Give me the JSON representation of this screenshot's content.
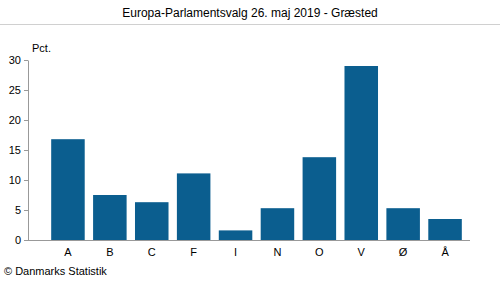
{
  "chart_data": {
    "type": "bar",
    "title": "Europa-Parlamentsvalg 26. maj 2019 - Græsted",
    "y_label": "Pct.",
    "source": "© Danmarks Statistik",
    "categories": [
      "A",
      "B",
      "C",
      "F",
      "I",
      "N",
      "O",
      "V",
      "Ø",
      "Å"
    ],
    "values": [
      16.8,
      7.5,
      6.3,
      11.1,
      1.6,
      5.3,
      13.8,
      29.0,
      5.3,
      3.5
    ],
    "color": "#0b5e8f",
    "ylim": [
      0,
      30
    ],
    "yticks": [
      0,
      5,
      10,
      15,
      20,
      25,
      30
    ],
    "grid": false
  }
}
